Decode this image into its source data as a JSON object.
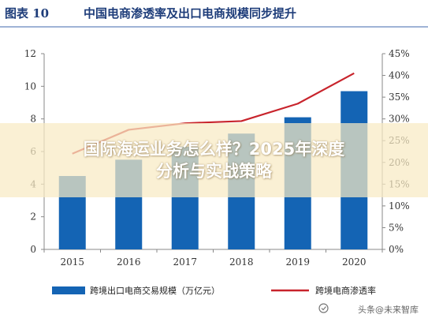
{
  "figure": {
    "number": "图表 10",
    "title": "中国电商渗透率及出口电商规模同步提升"
  },
  "banner": {
    "line1": "国际海运业务怎么样？2025年深度",
    "line2": "分析与实战策略"
  },
  "watermark": {
    "text": "头条@未来智库"
  },
  "colors": {
    "bar": "#1464b4",
    "line": "#c8242c",
    "header": "#1e3d7a",
    "axis": "#888888"
  },
  "chart_data": {
    "type": "bar",
    "categories": [
      "2015",
      "2016",
      "2017",
      "2018",
      "2019",
      "2020"
    ],
    "series": [
      {
        "name": "跨境出口电商交易规模（万亿元）",
        "type": "bar",
        "axis": "left",
        "values": [
          4.5,
          5.5,
          6.3,
          7.1,
          8.1,
          9.7
        ]
      },
      {
        "name": "跨境电商渗透率",
        "type": "line",
        "axis": "right",
        "values": [
          22.0,
          27.5,
          29.0,
          29.5,
          33.5,
          40.5
        ]
      }
    ],
    "ylim_left": [
      0,
      12
    ],
    "yticks_left": [
      "0",
      "2",
      "4",
      "6",
      "8",
      "10",
      "12"
    ],
    "ylim_right": [
      0,
      45
    ],
    "yticks_right": [
      "0%",
      "5%",
      "10%",
      "15%",
      "20%",
      "25%",
      "30%",
      "35%",
      "40%",
      "45%"
    ],
    "grid": false,
    "legend": "bottom"
  }
}
